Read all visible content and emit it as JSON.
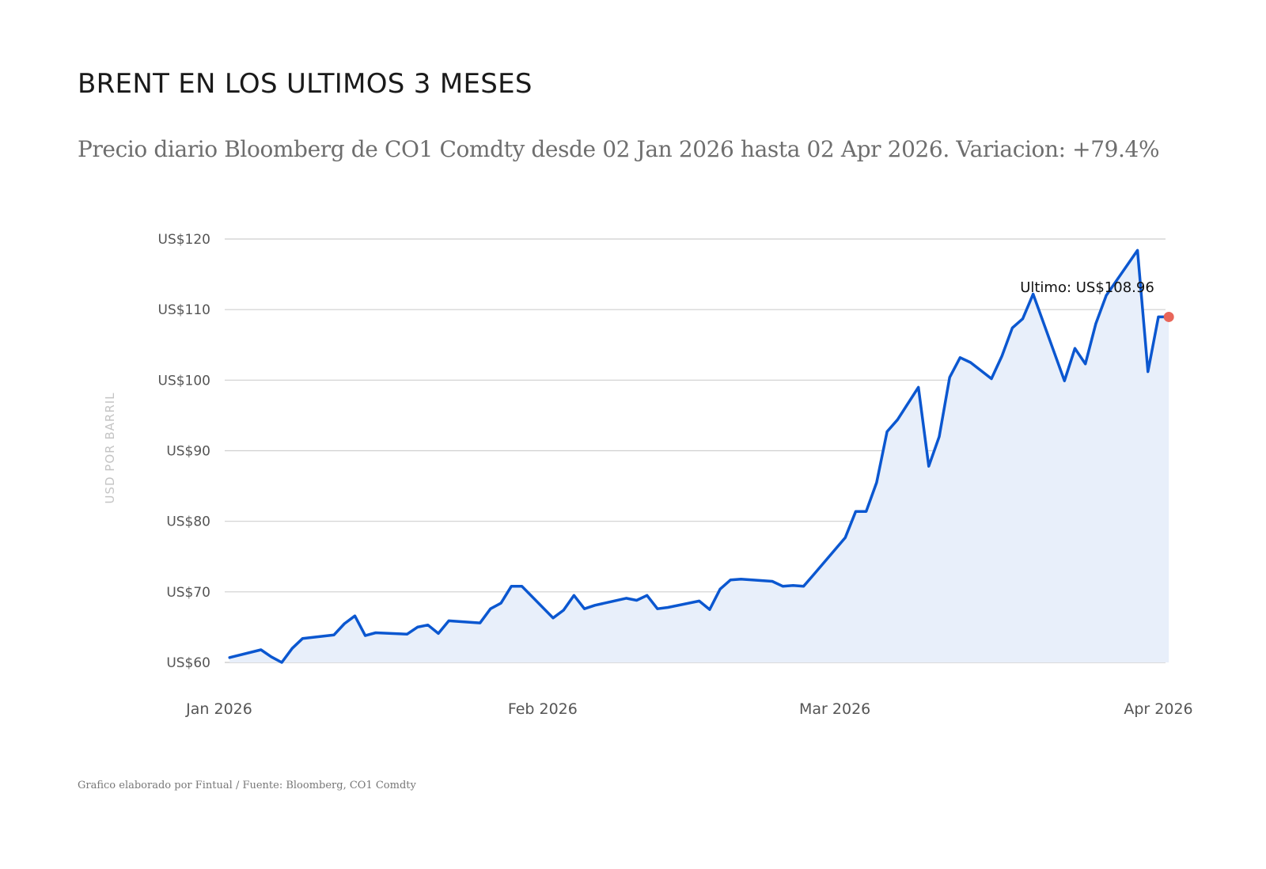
{
  "header": {
    "title": "BRENT EN LOS ULTIMOS 3 MESES",
    "subtitle": "Precio diario Bloomberg de CO1 Comdty desde 02 Jan 2026 hasta 02 Apr 2026. Variacion: +79.4%"
  },
  "footer": {
    "source": "Grafico elaborado por Fintual / Fuente: Bloomberg, CO1 Comdty"
  },
  "colors": {
    "line": "#0b57d0",
    "area": "#e8effa",
    "grid": "#cfcfcf",
    "last_point": "#e8665a"
  },
  "chart_data": {
    "type": "area",
    "title": "BRENT EN LOS ULTIMOS 3 MESES",
    "xlabel": "",
    "ylabel": "USD POR BARRIL",
    "ylim": [
      60,
      120
    ],
    "xlim": [
      0,
      91
    ],
    "grid": true,
    "y_ticks": [
      60,
      70,
      80,
      90,
      100,
      110,
      120
    ],
    "y_tick_labels": [
      "US$60",
      "US$70",
      "US$80",
      "US$90",
      "US$100",
      "US$110",
      "US$120"
    ],
    "x_ticks": [
      {
        "day": 0,
        "label": "Jan 2026"
      },
      {
        "day": 31,
        "label": "Feb 2026"
      },
      {
        "day": 59,
        "label": "Mar 2026"
      },
      {
        "day": 90,
        "label": "Apr 2026"
      }
    ],
    "series": [
      {
        "name": "CO1 Comdty",
        "x": [
          1,
          4,
          5,
          6,
          7,
          8,
          11,
          12,
          13,
          14,
          15,
          18,
          19,
          20,
          21,
          22,
          25,
          26,
          27,
          28,
          29,
          32,
          33,
          34,
          35,
          36,
          39,
          40,
          41,
          42,
          43,
          46,
          47,
          48,
          49,
          50,
          53,
          54,
          55,
          56,
          57,
          60,
          61,
          62,
          63,
          64,
          65,
          67,
          68,
          69,
          70,
          71,
          72,
          74,
          75,
          76,
          77,
          78,
          81,
          82,
          83,
          84,
          85,
          88,
          89,
          90,
          91
        ],
        "values": [
          60.7,
          61.8,
          60.8,
          60.0,
          62.0,
          63.4,
          63.9,
          65.5,
          66.6,
          63.8,
          64.2,
          64.0,
          65.0,
          65.3,
          64.1,
          65.9,
          65.6,
          67.6,
          68.4,
          70.8,
          70.8,
          66.3,
          67.4,
          69.5,
          67.6,
          68.1,
          69.1,
          68.8,
          69.5,
          67.6,
          67.8,
          68.7,
          67.5,
          70.4,
          71.7,
          71.8,
          71.5,
          70.8,
          70.9,
          70.8,
          72.5,
          77.7,
          81.4,
          81.4,
          85.5,
          92.7,
          94.4,
          99.0,
          87.8,
          92.0,
          100.4,
          103.2,
          102.5,
          100.2,
          103.4,
          107.4,
          108.7,
          112.2,
          99.9,
          104.5,
          102.3,
          108.0,
          112.0,
          118.4,
          101.2,
          108.96,
          108.96
        ]
      }
    ],
    "last_value": 108.96,
    "annotation": "Ultimo: US$108.96"
  }
}
